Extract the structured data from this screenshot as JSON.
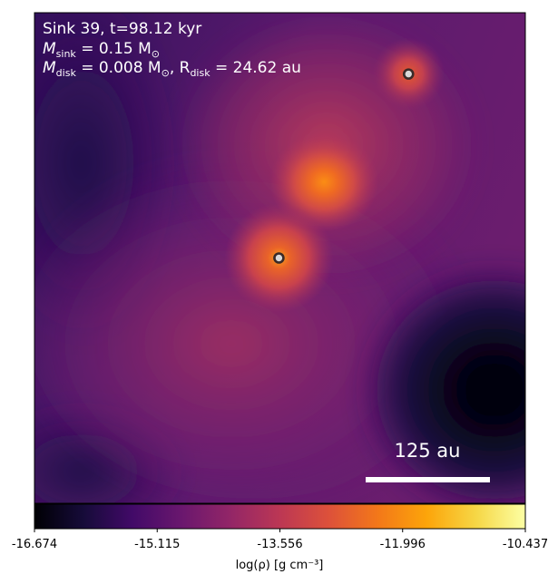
{
  "chart_data": {
    "type": "heatmap",
    "title": "Sink 39, t=98.12 kyr",
    "annotations": {
      "line1": "Sink 39, t=98.12 kyr",
      "line2_label": "M",
      "line2_sub": "sink",
      "line2_rest": " = 0.15 M",
      "line2_unit_sub": "⊙",
      "line3_label": "M",
      "line3_sub": "disk",
      "line3_mid": " = 0.008 M",
      "line3_unit_sub": "⊙",
      "line3_comma": ",  R",
      "line3_r_sub": "disk",
      "line3_rest": " = 24.62 au"
    },
    "scale_bar": {
      "label": "125 au",
      "length_au": 125
    },
    "colorbar": {
      "label": "log(ρ) [g cm⁻³]",
      "range": [
        -16.674,
        -10.437
      ],
      "ticks": [
        "-16.674",
        "-15.115",
        "-13.556",
        "-11.996",
        "-10.437"
      ],
      "colormap": "inferno"
    },
    "sinks": [
      {
        "name": "sink-primary",
        "x_frac": 0.498,
        "y_frac": 0.5
      },
      {
        "name": "sink-secondary",
        "x_frac": 0.762,
        "y_frac": 0.125
      }
    ],
    "density_peaks": [
      {
        "name": "clump-center",
        "x_frac": 0.59,
        "y_frac": 0.345
      }
    ]
  }
}
